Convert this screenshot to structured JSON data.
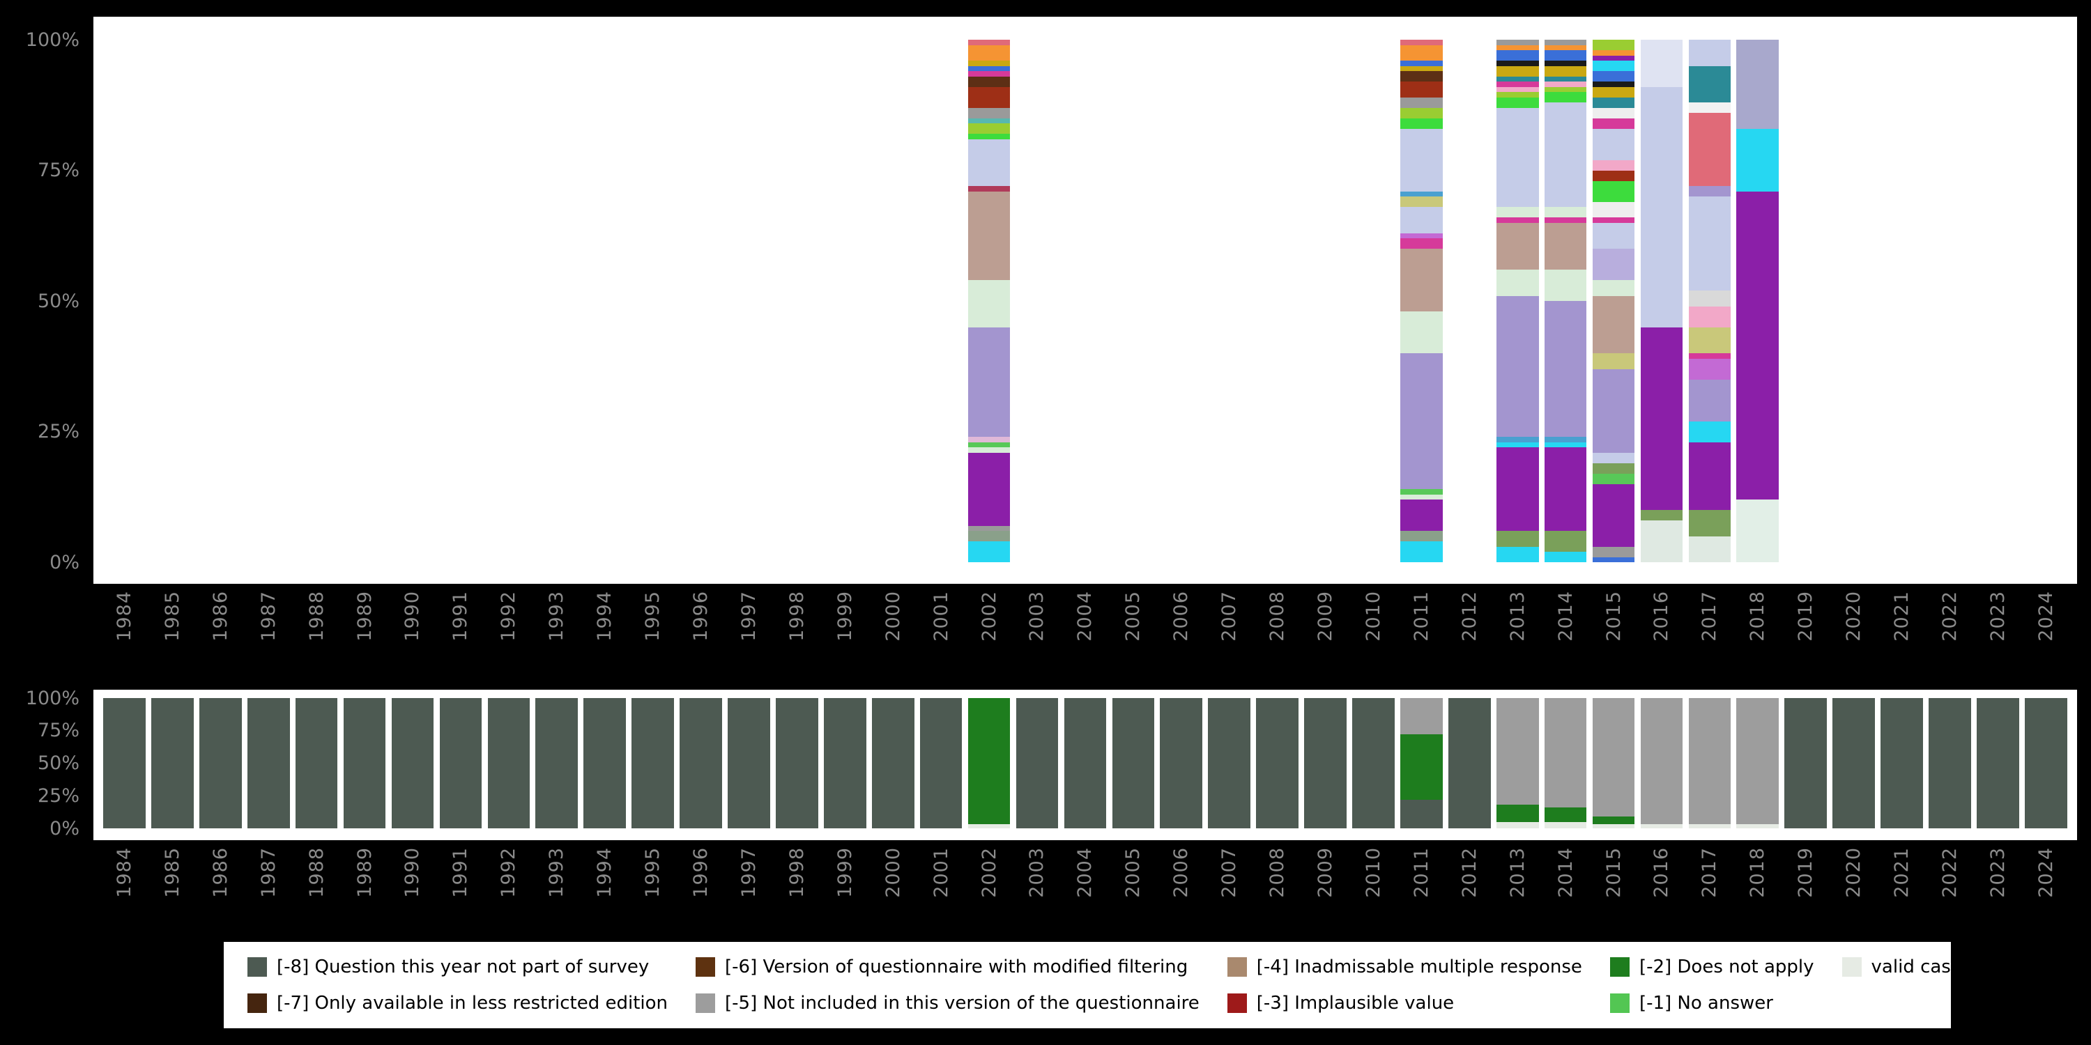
{
  "colors": {
    "page_background": "#000000",
    "plot_background": "#ffffff",
    "axis_text": "#8b8b8b",
    "legend_background": "#ffffff",
    "legend_text": "#000000"
  },
  "legend": {
    "order": [
      "-8",
      "-7",
      "-6",
      "-5",
      "-4",
      "-3",
      "-2",
      "-1",
      "valid"
    ]
  },
  "chart_data": [
    {
      "id": "distribution",
      "type": "bar",
      "stacked": true,
      "title": "",
      "xlabel": "",
      "ylabel": "",
      "ylim": [
        0,
        100
      ],
      "grid": false,
      "y_ticks": [
        "100%",
        "75%",
        "50%",
        "25%",
        "0%"
      ],
      "categories": [
        "1984",
        "1985",
        "1986",
        "1987",
        "1988",
        "1989",
        "1990",
        "1991",
        "1992",
        "1993",
        "1994",
        "1995",
        "1996",
        "1997",
        "1998",
        "1999",
        "2000",
        "2001",
        "2002",
        "2003",
        "2004",
        "2005",
        "2006",
        "2007",
        "2008",
        "2009",
        "2010",
        "2011",
        "2012",
        "2013",
        "2014",
        "2015",
        "2016",
        "2017",
        "2018",
        "2019",
        "2020",
        "2021",
        "2022",
        "2023",
        "2024"
      ],
      "note": "Per-year stacked response-category shares (percent, bottom to top); years absent have no bar",
      "bars": {
        "2002": [
          {
            "c": "#26d7f2",
            "v": 4
          },
          {
            "c": "#8aa08a",
            "v": 2
          },
          {
            "c": "#9a9a9a",
            "v": 1
          },
          {
            "c": "#8b1fa8",
            "v": 14
          },
          {
            "c": "#d8ecd8",
            "v": 1
          },
          {
            "c": "#58c858",
            "v": 1
          },
          {
            "c": "#e0b8d8",
            "v": 1
          },
          {
            "c": "#a395cf",
            "v": 21
          },
          {
            "c": "#d8ecd8",
            "v": 9
          },
          {
            "c": "#bc9e92",
            "v": 17
          },
          {
            "c": "#b03a5a",
            "v": 1
          },
          {
            "c": "#c5cce8",
            "v": 9
          },
          {
            "c": "#3ddc3d",
            "v": 1
          },
          {
            "c": "#9acd32",
            "v": 2
          },
          {
            "c": "#58b8b0",
            "v": 1
          },
          {
            "c": "#9a9a9a",
            "v": 2
          },
          {
            "c": "#9e2f16",
            "v": 4
          },
          {
            "c": "#5d2f15",
            "v": 2
          },
          {
            "c": "#d63a9a",
            "v": 1
          },
          {
            "c": "#3a6fd8",
            "v": 1
          },
          {
            "c": "#caa812",
            "v": 1
          },
          {
            "c": "#f59433",
            "v": 3
          },
          {
            "c": "#e06a78",
            "v": 1
          }
        ],
        "2011": [
          {
            "c": "#26d7f2",
            "v": 4
          },
          {
            "c": "#8aa08a",
            "v": 2
          },
          {
            "c": "#8b1fa8",
            "v": 6
          },
          {
            "c": "#d8ecd8",
            "v": 1
          },
          {
            "c": "#58c858",
            "v": 1
          },
          {
            "c": "#a395cf",
            "v": 26
          },
          {
            "c": "#d8ecd8",
            "v": 8
          },
          {
            "c": "#bc9e92",
            "v": 12
          },
          {
            "c": "#d63a9a",
            "v": 2
          },
          {
            "c": "#c36ad4",
            "v": 1
          },
          {
            "c": "#c5cce8",
            "v": 5
          },
          {
            "c": "#c9c87a",
            "v": 2
          },
          {
            "c": "#4aa0d0",
            "v": 1
          },
          {
            "c": "#c5cce8",
            "v": 12
          },
          {
            "c": "#3ddc3d",
            "v": 2
          },
          {
            "c": "#9acd32",
            "v": 2
          },
          {
            "c": "#9a9a9a",
            "v": 2
          },
          {
            "c": "#9e2f16",
            "v": 3
          },
          {
            "c": "#5d2f15",
            "v": 2
          },
          {
            "c": "#caa812",
            "v": 1
          },
          {
            "c": "#3a6fd8",
            "v": 1
          },
          {
            "c": "#f59433",
            "v": 3
          },
          {
            "c": "#e06a78",
            "v": 1
          }
        ],
        "2013": [
          {
            "c": "#26d7f2",
            "v": 3
          },
          {
            "c": "#7aa05a",
            "v": 3
          },
          {
            "c": "#8b1fa8",
            "v": 16
          },
          {
            "c": "#26d7f2",
            "v": 1
          },
          {
            "c": "#4aa0d0",
            "v": 1
          },
          {
            "c": "#a395cf",
            "v": 27
          },
          {
            "c": "#d8ecd8",
            "v": 5
          },
          {
            "c": "#bc9e92",
            "v": 9
          },
          {
            "c": "#d63a9a",
            "v": 1
          },
          {
            "c": "#d8ecd8",
            "v": 2
          },
          {
            "c": "#c5cce8",
            "v": 19
          },
          {
            "c": "#3ddc3d",
            "v": 2
          },
          {
            "c": "#9acd32",
            "v": 1
          },
          {
            "c": "#f2a8c8",
            "v": 1
          },
          {
            "c": "#d63a9a",
            "v": 1
          },
          {
            "c": "#2b8a96",
            "v": 1
          },
          {
            "c": "#caa812",
            "v": 2
          },
          {
            "c": "#1a1a1a",
            "v": 1
          },
          {
            "c": "#3a6fd8",
            "v": 2
          },
          {
            "c": "#f59433",
            "v": 1
          },
          {
            "c": "#9a9a9a",
            "v": 1
          }
        ],
        "2014": [
          {
            "c": "#26d7f2",
            "v": 2
          },
          {
            "c": "#7aa05a",
            "v": 4
          },
          {
            "c": "#8b1fa8",
            "v": 16
          },
          {
            "c": "#26d7f2",
            "v": 1
          },
          {
            "c": "#4aa0d0",
            "v": 1
          },
          {
            "c": "#a395cf",
            "v": 26
          },
          {
            "c": "#d8ecd8",
            "v": 6
          },
          {
            "c": "#bc9e92",
            "v": 9
          },
          {
            "c": "#d63a9a",
            "v": 1
          },
          {
            "c": "#d8ecd8",
            "v": 2
          },
          {
            "c": "#c5cce8",
            "v": 20
          },
          {
            "c": "#3ddc3d",
            "v": 2
          },
          {
            "c": "#9acd32",
            "v": 1
          },
          {
            "c": "#f2a8c8",
            "v": 1
          },
          {
            "c": "#2b8a96",
            "v": 1
          },
          {
            "c": "#caa812",
            "v": 2
          },
          {
            "c": "#1a1a1a",
            "v": 1
          },
          {
            "c": "#3a6fd8",
            "v": 2
          },
          {
            "c": "#f59433",
            "v": 1
          },
          {
            "c": "#9a9a9a",
            "v": 1
          }
        ],
        "2015": [
          {
            "c": "#3a6fd8",
            "v": 1
          },
          {
            "c": "#9a9a9a",
            "v": 2
          },
          {
            "c": "#8b1fa8",
            "v": 12
          },
          {
            "c": "#58c858",
            "v": 2
          },
          {
            "c": "#7aa05a",
            "v": 2
          },
          {
            "c": "#c5cce8",
            "v": 2
          },
          {
            "c": "#a395cf",
            "v": 16
          },
          {
            "c": "#c9c87a",
            "v": 3
          },
          {
            "c": "#bc9e92",
            "v": 11
          },
          {
            "c": "#d8ecd8",
            "v": 3
          },
          {
            "c": "#b8aedd",
            "v": 6
          },
          {
            "c": "#c5cce8",
            "v": 5
          },
          {
            "c": "#d63a9a",
            "v": 1
          },
          {
            "c": "#eeeeee",
            "v": 3
          },
          {
            "c": "#3ddc3d",
            "v": 4
          },
          {
            "c": "#9e2f16",
            "v": 2
          },
          {
            "c": "#f2a8c8",
            "v": 2
          },
          {
            "c": "#c5cce8",
            "v": 6
          },
          {
            "c": "#d63a9a",
            "v": 2
          },
          {
            "c": "#eeeeee",
            "v": 2
          },
          {
            "c": "#2b8a96",
            "v": 2
          },
          {
            "c": "#caa812",
            "v": 2
          },
          {
            "c": "#1a1a1a",
            "v": 1
          },
          {
            "c": "#3a6fd8",
            "v": 2
          },
          {
            "c": "#26d7f2",
            "v": 2
          },
          {
            "c": "#8b1fa8",
            "v": 1
          },
          {
            "c": "#f59433",
            "v": 1
          },
          {
            "c": "#9acd32",
            "v": 2
          }
        ],
        "2016": [
          {
            "c": "#dfe9e2",
            "v": 8
          },
          {
            "c": "#7aa05a",
            "v": 2
          },
          {
            "c": "#8b1fa8",
            "v": 35
          },
          {
            "c": "#c5cce8",
            "v": 46
          },
          {
            "c": "#dfe3f2",
            "v": 9
          }
        ],
        "2017": [
          {
            "c": "#dfe9e2",
            "v": 5
          },
          {
            "c": "#7aa05a",
            "v": 5
          },
          {
            "c": "#8b1fa8",
            "v": 13
          },
          {
            "c": "#26d7f2",
            "v": 4
          },
          {
            "c": "#a395cf",
            "v": 8
          },
          {
            "c": "#c36ad4",
            "v": 4
          },
          {
            "c": "#d63a9a",
            "v": 1
          },
          {
            "c": "#c9c87a",
            "v": 5
          },
          {
            "c": "#f2a8c8",
            "v": 4
          },
          {
            "c": "#d9d9d9",
            "v": 3
          },
          {
            "c": "#c5cce8",
            "v": 18
          },
          {
            "c": "#a395cf",
            "v": 2
          },
          {
            "c": "#e06a78",
            "v": 14
          },
          {
            "c": "#f2f2f2",
            "v": 2
          },
          {
            "c": "#2b8a96",
            "v": 7
          },
          {
            "c": "#c5cce8",
            "v": 5
          }
        ],
        "2018": [
          {
            "c": "#e2efe7",
            "v": 12
          },
          {
            "c": "#8b1fa8",
            "v": 59
          },
          {
            "c": "#26d7f2",
            "v": 12
          },
          {
            "c": "#a8a8cc",
            "v": 17
          }
        ]
      }
    },
    {
      "id": "availability",
      "type": "bar",
      "stacked": true,
      "title": "",
      "xlabel": "",
      "ylabel": "",
      "ylim": [
        0,
        100
      ],
      "grid": false,
      "y_ticks": [
        "100%",
        "75%",
        "50%",
        "25%",
        "0%"
      ],
      "categories": [
        "1984",
        "1985",
        "1986",
        "1987",
        "1988",
        "1989",
        "1990",
        "1991",
        "1992",
        "1993",
        "1994",
        "1995",
        "1996",
        "1997",
        "1998",
        "1999",
        "2000",
        "2001",
        "2002",
        "2003",
        "2004",
        "2005",
        "2006",
        "2007",
        "2008",
        "2009",
        "2010",
        "2011",
        "2012",
        "2013",
        "2014",
        "2015",
        "2016",
        "2017",
        "2018",
        "2019",
        "2020",
        "2021",
        "2022",
        "2023",
        "2024"
      ],
      "series_categories": {
        "-8": {
          "label": "[-8] Question this year not part of survey",
          "color": "#4d5a52"
        },
        "-7": {
          "label": "[-7] Only available in less restricted edition",
          "color": "#45250f"
        },
        "-6": {
          "label": "[-6] Version of questionnaire with modified filtering",
          "color": "#5e3210"
        },
        "-5": {
          "label": "[-5] Not included in this version of the questionnaire",
          "color": "#9d9d9d"
        },
        "-4": {
          "label": "[-4] Inadmissable multiple response",
          "color": "#a9896e"
        },
        "-3": {
          "label": "[-3] Implausible value",
          "color": "#9e1a1a"
        },
        "-2": {
          "label": "[-2] Does not apply",
          "color": "#1e7d1e"
        },
        "-1": {
          "label": "[-1] No answer",
          "color": "#53c653"
        },
        "valid": {
          "label": "valid cases",
          "color": "#e6ebe4"
        }
      },
      "default_bar": [
        {
          "cat": "-8",
          "v": 100
        }
      ],
      "bars": {
        "2002": [
          {
            "cat": "valid",
            "v": 3
          },
          {
            "cat": "-2",
            "v": 97
          }
        ],
        "2011": [
          {
            "cat": "-8",
            "v": 22
          },
          {
            "cat": "-2",
            "v": 50
          },
          {
            "cat": "-5",
            "v": 28
          }
        ],
        "2013": [
          {
            "cat": "valid",
            "v": 5
          },
          {
            "cat": "-2",
            "v": 13
          },
          {
            "cat": "-5",
            "v": 82
          }
        ],
        "2014": [
          {
            "cat": "valid",
            "v": 5
          },
          {
            "cat": "-2",
            "v": 11
          },
          {
            "cat": "-5",
            "v": 84
          }
        ],
        "2015": [
          {
            "cat": "valid",
            "v": 3
          },
          {
            "cat": "-2",
            "v": 6
          },
          {
            "cat": "-5",
            "v": 91
          }
        ],
        "2016": [
          {
            "cat": "valid",
            "v": 3
          },
          {
            "cat": "-5",
            "v": 97
          }
        ],
        "2017": [
          {
            "cat": "valid",
            "v": 3
          },
          {
            "cat": "-5",
            "v": 97
          }
        ],
        "2018": [
          {
            "cat": "valid",
            "v": 3
          },
          {
            "cat": "-5",
            "v": 97
          }
        ]
      }
    }
  ]
}
